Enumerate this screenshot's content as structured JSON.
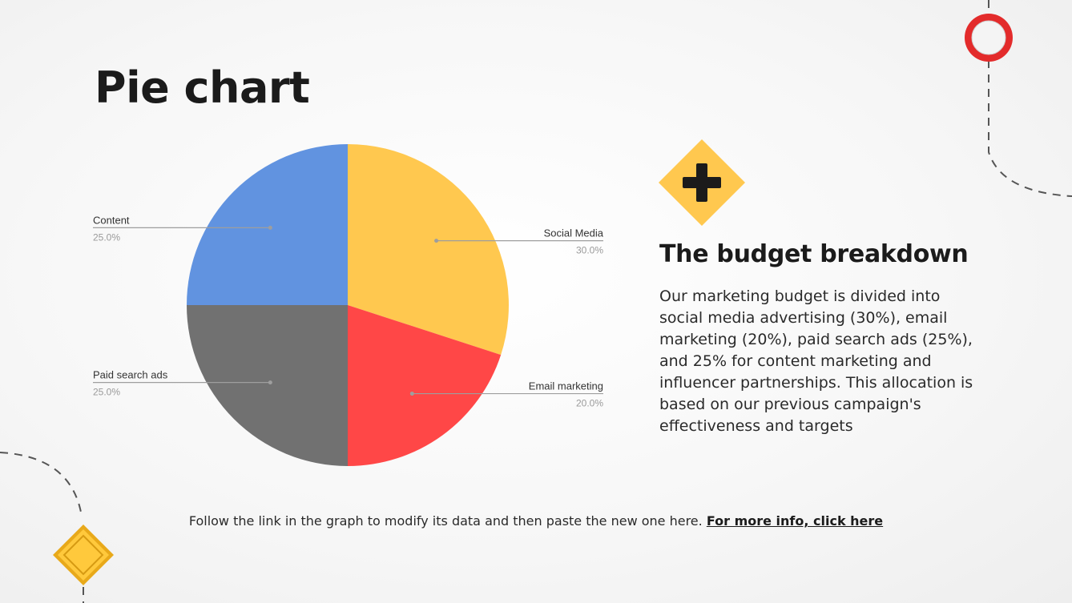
{
  "slide": {
    "title": "Pie chart",
    "side_heading": "The budget breakdown",
    "side_body": "Our marketing budget is divided into social media advertising (30%), email marketing (20%), paid search ads (25%), and 25% for content marketing and influencer partnerships. This allocation is based on our previous campaign's effectiveness and targets",
    "footer_text": "Follow the link in the graph to modify its data and then paste the new one here.",
    "footer_link": "For more info, click here"
  },
  "colors": {
    "social_media": "#FFC84F",
    "email_marketing": "#FF4747",
    "paid_search_ads": "#717171",
    "content": "#6193E0",
    "accent_yellow": "#FFC84F",
    "accent_red": "#E32B2B"
  },
  "icons": {
    "plus": "plus-sign-diamond-icon",
    "top_right": "round-red-sign-icon",
    "bottom_left": "yellow-diamond-sign-icon"
  },
  "chart_data": {
    "type": "pie",
    "start_angle_deg": 0,
    "direction": "clockwise",
    "slices": [
      {
        "label": "Social Media",
        "value": 30.0,
        "pct_label": "30.0%",
        "color": "#FFC84F",
        "label_side": "right"
      },
      {
        "label": "Email marketing",
        "value": 20.0,
        "pct_label": "20.0%",
        "color": "#FF4747",
        "label_side": "right"
      },
      {
        "label": "Paid search ads",
        "value": 25.0,
        "pct_label": "25.0%",
        "color": "#717171",
        "label_side": "left"
      },
      {
        "label": "Content",
        "value": 25.0,
        "pct_label": "25.0%",
        "color": "#6193E0",
        "label_side": "left"
      }
    ]
  }
}
